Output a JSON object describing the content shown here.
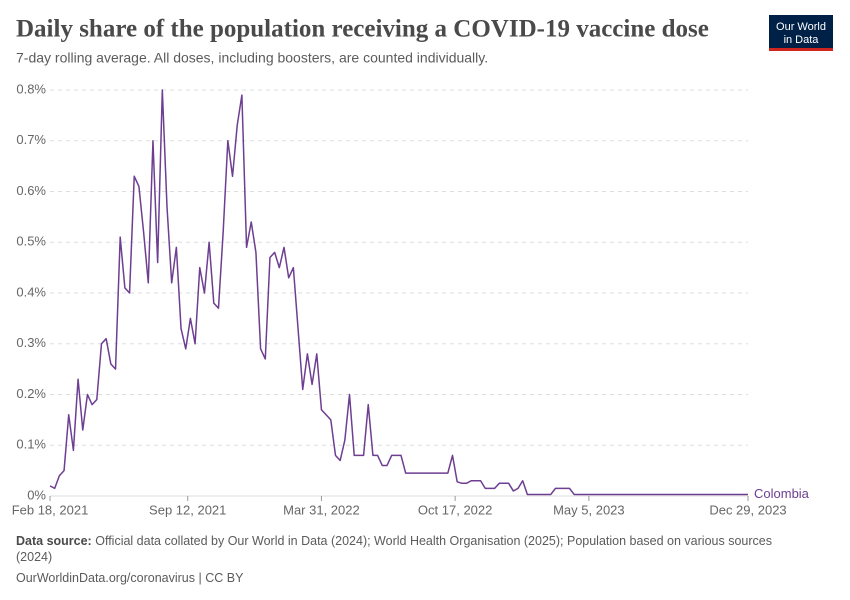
{
  "chart_data": {
    "type": "line",
    "title": "Daily share of the population receiving a COVID-19 vaccine dose",
    "subtitle": "7-day rolling average. All doses, including boosters, are counted individually.",
    "logo": [
      "Our World",
      "in Data"
    ],
    "source_label": "Data source:",
    "source": "Official data collated by Our World in Data (2024); World Health Organisation (2025); Population based on various sources (2024)",
    "footer": "OurWorldinData.org/coronavirus | CC BY",
    "x": [
      "2021-02-18",
      "2021-02-25",
      "2021-03-04",
      "2021-03-11",
      "2021-03-18",
      "2021-03-25",
      "2021-04-01",
      "2021-04-08",
      "2021-04-15",
      "2021-04-22",
      "2021-04-29",
      "2021-05-06",
      "2021-05-13",
      "2021-05-20",
      "2021-05-27",
      "2021-06-03",
      "2021-06-10",
      "2021-06-17",
      "2021-06-24",
      "2021-07-01",
      "2021-07-08",
      "2021-07-15",
      "2021-07-22",
      "2021-07-29",
      "2021-08-05",
      "2021-08-12",
      "2021-08-19",
      "2021-08-26",
      "2021-09-02",
      "2021-09-09",
      "2021-09-16",
      "2021-09-23",
      "2021-09-30",
      "2021-10-07",
      "2021-10-14",
      "2021-10-21",
      "2021-10-28",
      "2021-11-04",
      "2021-11-11",
      "2021-11-18",
      "2021-11-25",
      "2021-12-02",
      "2021-12-09",
      "2021-12-16",
      "2021-12-23",
      "2021-12-30",
      "2022-01-06",
      "2022-01-13",
      "2022-01-20",
      "2022-01-27",
      "2022-02-03",
      "2022-02-10",
      "2022-02-17",
      "2022-02-24",
      "2022-03-03",
      "2022-03-10",
      "2022-03-17",
      "2022-03-24",
      "2022-03-31",
      "2022-04-07",
      "2022-04-14",
      "2022-04-21",
      "2022-04-28",
      "2022-05-05",
      "2022-05-12",
      "2022-05-19",
      "2022-05-26",
      "2022-06-02",
      "2022-06-09",
      "2022-06-16",
      "2022-06-23",
      "2022-06-30",
      "2022-07-07",
      "2022-07-14",
      "2022-07-21",
      "2022-07-28",
      "2022-08-04",
      "2022-08-11",
      "2022-08-18",
      "2022-08-25",
      "2022-09-01",
      "2022-09-08",
      "2022-09-15",
      "2022-09-22",
      "2022-09-29",
      "2022-10-06",
      "2022-10-13",
      "2022-10-20",
      "2022-10-27",
      "2022-11-03",
      "2022-11-10",
      "2022-11-17",
      "2022-11-24",
      "2022-12-01",
      "2022-12-08",
      "2022-12-15",
      "2022-12-22",
      "2022-12-29",
      "2023-01-05",
      "2023-01-12",
      "2023-01-19",
      "2023-01-26",
      "2023-02-02",
      "2023-02-09",
      "2023-02-16",
      "2023-02-23",
      "2023-03-02",
      "2023-03-09",
      "2023-03-16",
      "2023-03-23",
      "2023-03-30",
      "2023-04-06",
      "2023-04-13",
      "2023-12-29"
    ],
    "series": [
      {
        "name": "Colombia",
        "color": "#6d3e91",
        "values": [
          0.02,
          0.015,
          0.04,
          0.05,
          0.16,
          0.09,
          0.23,
          0.13,
          0.2,
          0.18,
          0.19,
          0.3,
          0.31,
          0.26,
          0.25,
          0.51,
          0.41,
          0.4,
          0.63,
          0.61,
          0.52,
          0.42,
          0.7,
          0.46,
          0.8,
          0.57,
          0.42,
          0.49,
          0.33,
          0.29,
          0.35,
          0.3,
          0.45,
          0.4,
          0.5,
          0.38,
          0.37,
          0.52,
          0.7,
          0.63,
          0.73,
          0.79,
          0.49,
          0.54,
          0.48,
          0.29,
          0.27,
          0.47,
          0.48,
          0.45,
          0.49,
          0.43,
          0.45,
          0.33,
          0.21,
          0.28,
          0.22,
          0.28,
          0.17,
          0.16,
          0.15,
          0.08,
          0.07,
          0.11,
          0.2,
          0.08,
          0.08,
          0.08,
          0.18,
          0.08,
          0.08,
          0.06,
          0.06,
          0.08,
          0.08,
          0.08,
          0.045,
          0.045,
          0.045,
          0.045,
          0.045,
          0.045,
          0.045,
          0.045,
          0.045,
          0.045,
          0.08,
          0.028,
          0.025,
          0.025,
          0.03,
          0.03,
          0.03,
          0.015,
          0.015,
          0.015,
          0.025,
          0.025,
          0.025,
          0.01,
          0.015,
          0.03,
          0.003,
          0.003,
          0.003,
          0.003,
          0.003,
          0.003,
          0.015,
          0.015,
          0.015,
          0.015,
          0.003,
          0.003
        ]
      }
    ],
    "xlim": [
      "2021-02-18",
      "2023-12-29"
    ],
    "xticks": [
      {
        "value": "2021-02-18",
        "label": "Feb 18, 2021"
      },
      {
        "value": "2021-09-12",
        "label": "Sep 12, 2021"
      },
      {
        "value": "2022-03-31",
        "label": "Mar 31, 2022"
      },
      {
        "value": "2022-10-17",
        "label": "Oct 17, 2022"
      },
      {
        "value": "2023-05-05",
        "label": "May 5, 2023"
      },
      {
        "value": "2023-12-29",
        "label": "Dec 29, 2023"
      }
    ],
    "ylim": [
      0,
      0.8
    ],
    "yticks": [
      {
        "value": 0,
        "label": "0%"
      },
      {
        "value": 0.1,
        "label": "0.1%"
      },
      {
        "value": 0.2,
        "label": "0.2%"
      },
      {
        "value": 0.3,
        "label": "0.3%"
      },
      {
        "value": 0.4,
        "label": "0.4%"
      },
      {
        "value": 0.5,
        "label": "0.5%"
      },
      {
        "value": 0.6,
        "label": "0.6%"
      },
      {
        "value": 0.7,
        "label": "0.7%"
      },
      {
        "value": 0.8,
        "label": "0.8%"
      }
    ],
    "grid": true
  }
}
